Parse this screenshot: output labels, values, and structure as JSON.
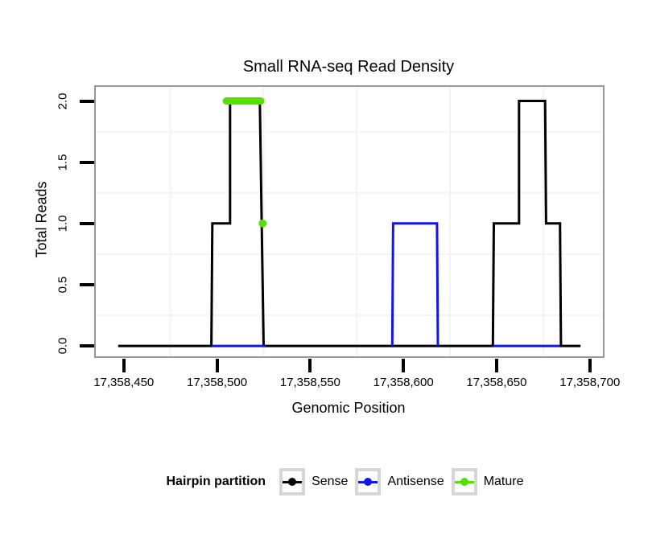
{
  "legend": {
    "title": "Hairpin partition",
    "entries": [
      {
        "label": "Sense",
        "color": "#000000"
      },
      {
        "label": "Antisense",
        "color": "#1414EC"
      },
      {
        "label": "Mature",
        "color": "#55E000"
      }
    ]
  },
  "chart_data": {
    "type": "line",
    "title": "Small RNA-seq Read Density",
    "xlabel": "Genomic Position",
    "ylabel": "Total Reads",
    "xlim": [
      17358435,
      17358707
    ],
    "ylim": [
      -0.085,
      2.115
    ],
    "grid": "minor-only",
    "grid_color": "#F4F4F4",
    "x_ticks": [
      {
        "value": 17358450,
        "label": "17,358,450"
      },
      {
        "value": 17358500,
        "label": "17,358,500"
      },
      {
        "value": 17358550,
        "label": "17,358,550"
      },
      {
        "value": 17358600,
        "label": "17,358,600"
      },
      {
        "value": 17358650,
        "label": "17,358,650"
      },
      {
        "value": 17358700,
        "label": "17,358,700"
      }
    ],
    "y_ticks": [
      {
        "value": 0.0,
        "label": "0.0"
      },
      {
        "value": 0.5,
        "label": "0.5"
      },
      {
        "value": 1.0,
        "label": "1.0"
      },
      {
        "value": 1.5,
        "label": "1.5"
      },
      {
        "value": 2.0,
        "label": "2.0"
      }
    ],
    "x_minor_gridlines": [
      17358475,
      17358525,
      17358575,
      17358625,
      17358675
    ],
    "y_minor_gridlines": [
      0.25,
      0.75,
      1.25,
      1.75
    ],
    "legend_position": "bottom",
    "series": [
      {
        "name": "Sense",
        "color": "#000000",
        "lines": [
          {
            "lw": 3,
            "points": [
              [
                17358447,
                0
              ],
              [
                17358497,
                0
              ],
              [
                17358497.5,
                1
              ],
              [
                17358507,
                1
              ],
              [
                17358507,
                2
              ],
              [
                17358523,
                2
              ],
              [
                17358524,
                1
              ],
              [
                17358525,
                0
              ],
              [
                17358648,
                0
              ],
              [
                17358648.5,
                1
              ],
              [
                17358662,
                1
              ],
              [
                17358662,
                2
              ],
              [
                17358676,
                2
              ],
              [
                17358676.5,
                1
              ],
              [
                17358684,
                1
              ],
              [
                17358684.5,
                0
              ],
              [
                17358695,
                0
              ]
            ]
          }
        ]
      },
      {
        "name": "Antisense",
        "color": "#1414EC",
        "lines": [
          {
            "lw": 3,
            "points": [
              [
                17358497,
                0
              ],
              [
                17358526,
                0
              ]
            ]
          },
          {
            "lw": 3,
            "points": [
              [
                17358594,
                0
              ],
              [
                17358594.5,
                1
              ],
              [
                17358618,
                1
              ],
              [
                17358618.5,
                0
              ]
            ]
          },
          {
            "lw": 3,
            "points": [
              [
                17358648,
                0
              ],
              [
                17358684,
                0
              ]
            ]
          }
        ]
      },
      {
        "name": "Mature",
        "color": "#55E000",
        "lines": [
          {
            "lw": 9,
            "cap": "round",
            "points": [
              [
                17358505,
                2
              ],
              [
                17358523.5,
                2
              ]
            ]
          },
          {
            "lw": 9,
            "points": [
              [
                17358524.5,
                1
              ]
            ]
          }
        ]
      }
    ]
  }
}
